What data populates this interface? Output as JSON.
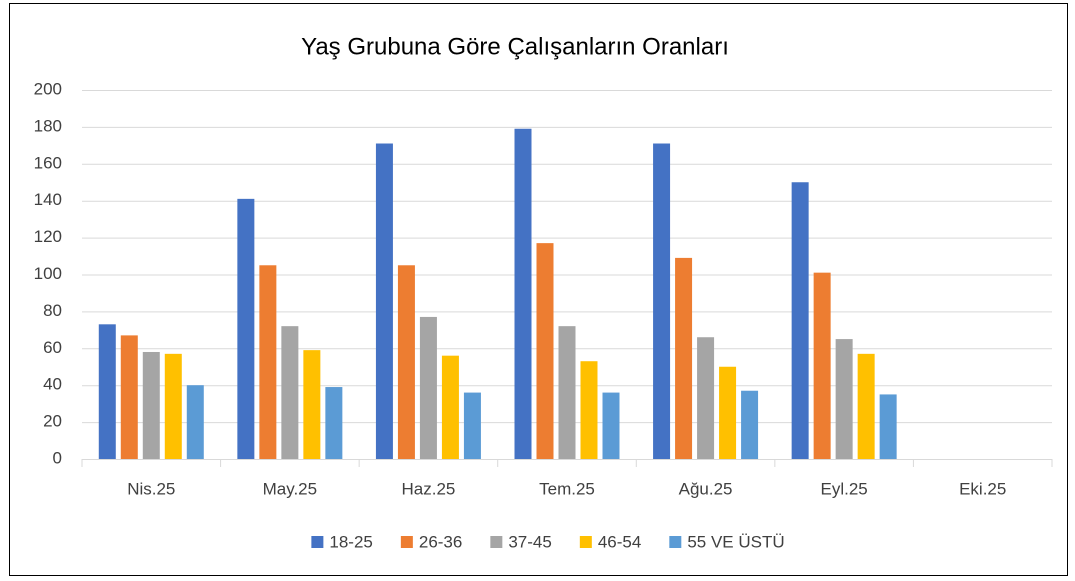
{
  "chart_data": {
    "type": "bar",
    "title": "Yaş Grubuna Göre Çalışanların Oranları",
    "categories": [
      "Nis.25",
      "May.25",
      "Haz.25",
      "Tem.25",
      "Ağu.25",
      "Eyl.25",
      "Eki.25"
    ],
    "series": [
      {
        "name": "18-25",
        "color": "#4472c4",
        "values": [
          73,
          141,
          171,
          179,
          171,
          150,
          null
        ]
      },
      {
        "name": "26-36",
        "color": "#ed7d31",
        "values": [
          67,
          105,
          105,
          117,
          109,
          101,
          null
        ]
      },
      {
        "name": "37-45",
        "color": "#a5a5a5",
        "values": [
          58,
          72,
          77,
          72,
          66,
          65,
          null
        ]
      },
      {
        "name": "46-54",
        "color": "#ffc000",
        "values": [
          57,
          59,
          56,
          53,
          50,
          57,
          null
        ]
      },
      {
        "name": "55 VE ÜSTÜ",
        "color": "#5b9bd5",
        "values": [
          40,
          39,
          36,
          36,
          37,
          35,
          null
        ]
      }
    ],
    "ylim": [
      0,
      200
    ],
    "yticks": [
      0,
      20,
      40,
      60,
      80,
      100,
      120,
      140,
      160,
      180,
      200
    ],
    "grid": true,
    "legend": "bottom"
  }
}
